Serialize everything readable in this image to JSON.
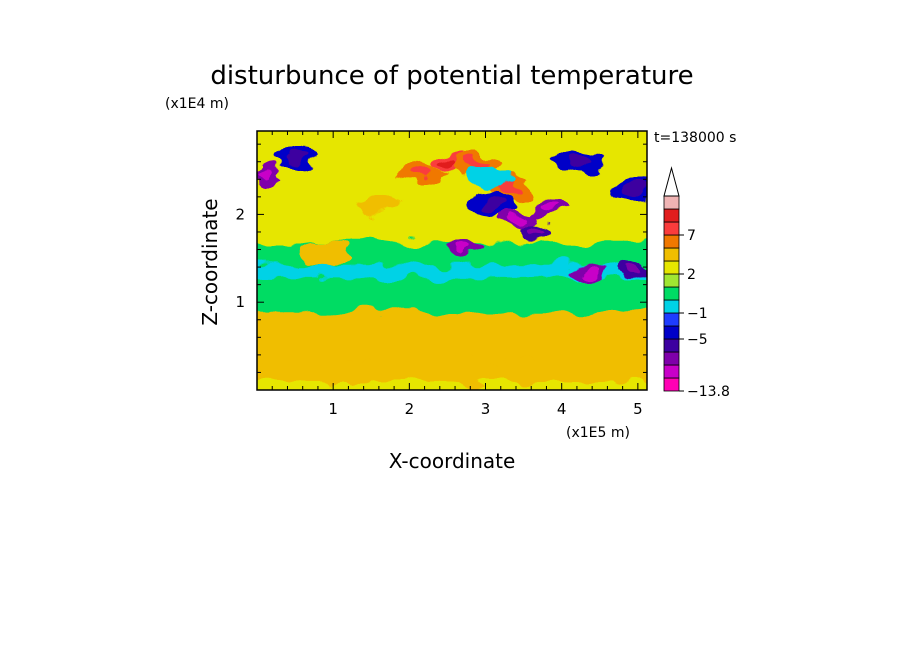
{
  "chart_data": {
    "type": "heatmap",
    "title": "disturbunce of potential temperature",
    "xlabel": "X-coordinate",
    "ylabel": "Z-coordinate",
    "x_unit": "(x1E5 m)",
    "y_unit": "(x1E4 m)",
    "time_label": "t=138000 s",
    "xlim": [
      0,
      5.12
    ],
    "ylim": [
      0,
      2.95
    ],
    "x_ticks": [
      "1",
      "2",
      "3",
      "4",
      "5"
    ],
    "x_tick_values": [
      1,
      2,
      3,
      4,
      5
    ],
    "y_ticks": [
      "1",
      "2"
    ],
    "y_tick_values": [
      1,
      2
    ],
    "colorbar": {
      "levels": [
        -13.8,
        -11,
        -9,
        -7,
        -5,
        -3,
        -1,
        0,
        1,
        2,
        3,
        5,
        7,
        9,
        11
      ],
      "labeled_levels": [
        "7",
        "2",
        "−1",
        "−5",
        "−13.8"
      ],
      "colors": [
        "#ff00b4",
        "#c800c8",
        "#7f00aa",
        "#3c00a0",
        "#0000c8",
        "#1e3cff",
        "#00d2e6",
        "#00dc64",
        "#a0e632",
        "#e6e600",
        "#f0be00",
        "#f07800",
        "#fa3c3c",
        "#e11e1e",
        "#f0b4b4"
      ],
      "extend": "max",
      "extend_color": "#ffffff"
    },
    "bands": [
      {
        "z_range": [
          0.0,
          0.12
        ],
        "value": 2
      },
      {
        "z_range": [
          0.12,
          0.35
        ],
        "value": 3
      },
      {
        "z_range": [
          0.35,
          0.6
        ],
        "value": 4
      },
      {
        "z_range": [
          0.6,
          0.92
        ],
        "value": 3
      },
      {
        "z_range": [
          0.92,
          1.05
        ],
        "value": 0.5
      },
      {
        "z_range": [
          1.05,
          1.3
        ],
        "value": 0.5
      },
      {
        "z_range": [
          1.3,
          1.45
        ],
        "value": -1
      },
      {
        "z_range": [
          1.45,
          1.7
        ],
        "value": 0.5
      },
      {
        "z_range": [
          1.7,
          2.95
        ],
        "value": 2
      }
    ],
    "features": [
      {
        "x": 2.5,
        "z": 2.62,
        "value": 7
      },
      {
        "x": 2.15,
        "z": 2.45,
        "value": 5
      },
      {
        "x": 2.9,
        "z": 2.55,
        "value": 6
      },
      {
        "x": 3.3,
        "z": 2.3,
        "value": 5
      },
      {
        "x": 3.45,
        "z": 1.95,
        "value": -8
      },
      {
        "x": 3.1,
        "z": 2.1,
        "value": -5
      },
      {
        "x": 3.8,
        "z": 2.05,
        "value": -9
      },
      {
        "x": 3.65,
        "z": 1.8,
        "value": -7
      },
      {
        "x": 2.72,
        "z": 1.62,
        "value": -8
      },
      {
        "x": 4.38,
        "z": 1.35,
        "value": -9
      },
      {
        "x": 4.95,
        "z": 1.4,
        "value": -7
      },
      {
        "x": 0.12,
        "z": 2.45,
        "value": -9
      },
      {
        "x": 0.5,
        "z": 2.65,
        "value": -5
      },
      {
        "x": 4.95,
        "z": 2.3,
        "value": -5
      },
      {
        "x": 4.25,
        "z": 2.6,
        "value": -5
      },
      {
        "x": 3.05,
        "z": 2.4,
        "value": -1
      },
      {
        "x": 1.55,
        "z": 0.45,
        "value": 4
      },
      {
        "x": 2.9,
        "z": 0.48,
        "value": 4
      },
      {
        "x": 1.6,
        "z": 2.1,
        "value": 4
      },
      {
        "x": 0.9,
        "z": 1.55,
        "value": 3
      }
    ]
  }
}
